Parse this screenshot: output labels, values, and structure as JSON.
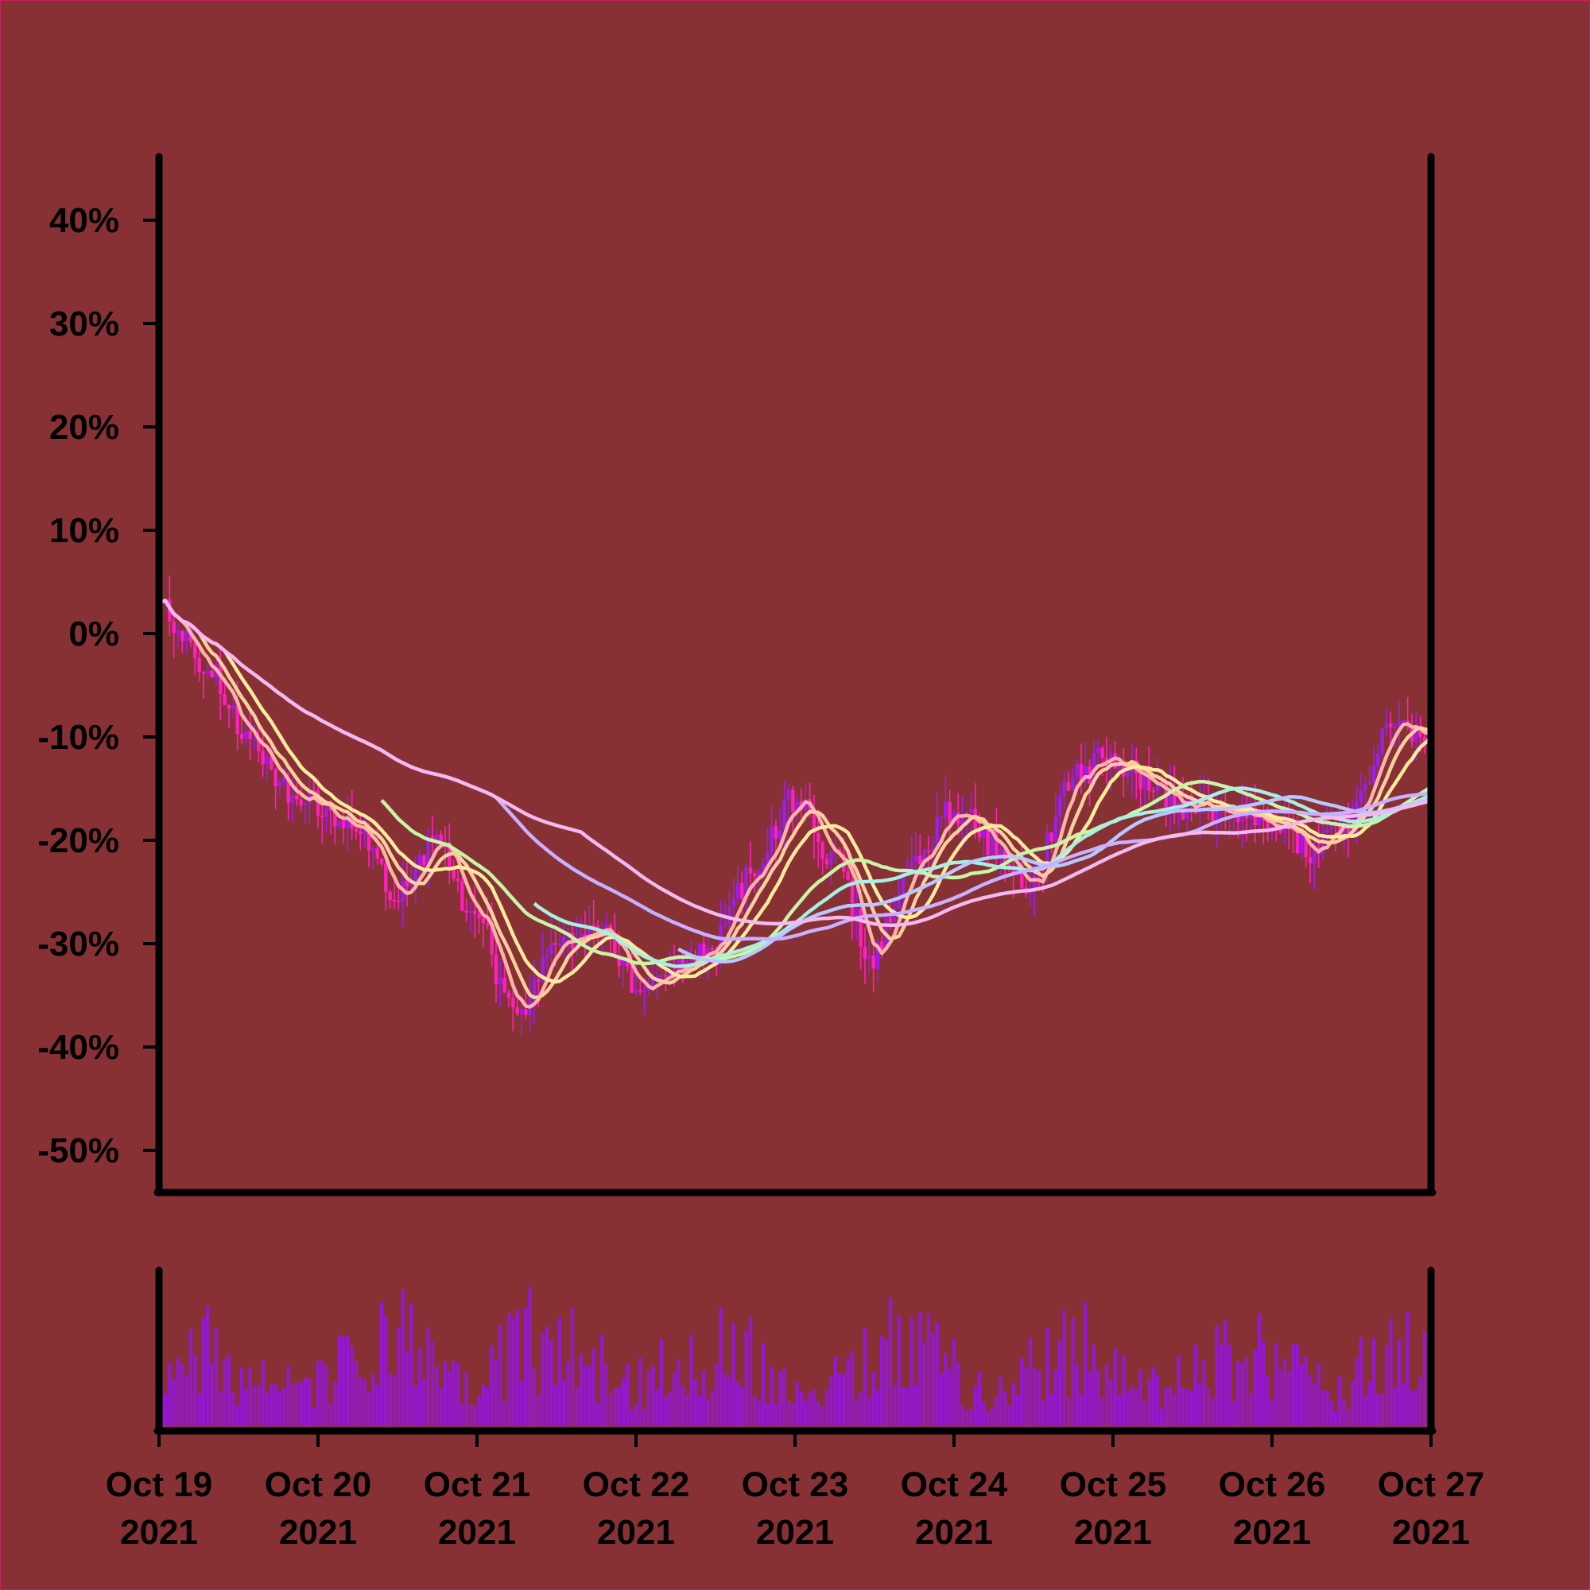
{
  "colors": {
    "background": "#873135",
    "frame": "#000000",
    "candle_up": "#9B1FE8",
    "candle_down": "#FF1FBF",
    "volume": "#9418CC"
  },
  "chart_data": [
    {
      "type": "candlestick",
      "title": "",
      "xlabel": "",
      "ylabel": "",
      "ylim": [
        -50,
        40
      ],
      "y_unit": "%",
      "y_ticks": [
        {
          "value": 40,
          "label": "40%"
        },
        {
          "value": 30,
          "label": "30%"
        },
        {
          "value": 20,
          "label": "20%"
        },
        {
          "value": 10,
          "label": "10%"
        },
        {
          "value": 0,
          "label": "0%"
        },
        {
          "value": -10,
          "label": "-10%"
        },
        {
          "value": -20,
          "label": "-20%"
        },
        {
          "value": -30,
          "label": "-30%"
        },
        {
          "value": -40,
          "label": "-40%"
        },
        {
          "value": -50,
          "label": "-50%"
        }
      ],
      "x_range": [
        "2021-10-19",
        "2021-10-27"
      ],
      "grid": false,
      "legend": "none",
      "price_close_keyframes": [
        {
          "t": "2021-10-19 00:00",
          "v": 2.5
        },
        {
          "t": "2021-10-19 08:00",
          "v": -3
        },
        {
          "t": "2021-10-19 14:00",
          "v": -11
        },
        {
          "t": "2021-10-19 22:00",
          "v": -16
        },
        {
          "t": "2021-10-20 06:00",
          "v": -19
        },
        {
          "t": "2021-10-20 12:00",
          "v": -25
        },
        {
          "t": "2021-10-20 18:00",
          "v": -20
        },
        {
          "t": "2021-10-21 00:00",
          "v": -27
        },
        {
          "t": "2021-10-21 06:00",
          "v": -37
        },
        {
          "t": "2021-10-21 12:00",
          "v": -30
        },
        {
          "t": "2021-10-21 18:00",
          "v": -28
        },
        {
          "t": "2021-10-22 00:00",
          "v": -34
        },
        {
          "t": "2021-10-22 06:00",
          "v": -32
        },
        {
          "t": "2021-10-22 12:00",
          "v": -30
        },
        {
          "t": "2021-10-22 18:00",
          "v": -23
        },
        {
          "t": "2021-10-23 00:00",
          "v": -16
        },
        {
          "t": "2021-10-23 06:00",
          "v": -22
        },
        {
          "t": "2021-10-23 12:00",
          "v": -31
        },
        {
          "t": "2021-10-23 18:00",
          "v": -22
        },
        {
          "t": "2021-10-24 00:00",
          "v": -17
        },
        {
          "t": "2021-10-24 06:00",
          "v": -20
        },
        {
          "t": "2021-10-24 12:00",
          "v": -24
        },
        {
          "t": "2021-10-24 18:00",
          "v": -14
        },
        {
          "t": "2021-10-25 00:00",
          "v": -12
        },
        {
          "t": "2021-10-25 06:00",
          "v": -15
        },
        {
          "t": "2021-10-25 12:00",
          "v": -17
        },
        {
          "t": "2021-10-25 18:00",
          "v": -18
        },
        {
          "t": "2021-10-26 00:00",
          "v": -18
        },
        {
          "t": "2021-10-26 06:00",
          "v": -21
        },
        {
          "t": "2021-10-26 12:00",
          "v": -18
        },
        {
          "t": "2021-10-26 18:00",
          "v": -9
        },
        {
          "t": "2021-10-27 00:00",
          "v": -10
        }
      ],
      "moving_averages": [
        {
          "color": "#FFB3A8",
          "final": -6.5
        },
        {
          "color": "#FFCF9E",
          "final": -8.5
        },
        {
          "color": "#FFEA9E",
          "final": -11
        },
        {
          "color": "#C8F5A8",
          "final": -16
        },
        {
          "color": "#A8F0E0",
          "final": -15.5
        },
        {
          "color": "#B8C8FF",
          "final": -17
        },
        {
          "color": "#C8B0FF",
          "final": -19
        },
        {
          "color": "#F5B8F0",
          "final": -22
        }
      ]
    },
    {
      "type": "bar",
      "title": "",
      "xlabel": "",
      "ylabel": "",
      "x_ticks": [
        {
          "line1": "Oct 19",
          "line2": "2021"
        },
        {
          "line1": "Oct 20",
          "line2": "2021"
        },
        {
          "line1": "Oct 21",
          "line2": "2021"
        },
        {
          "line1": "Oct 22",
          "line2": "2021"
        },
        {
          "line1": "Oct 23",
          "line2": "2021"
        },
        {
          "line1": "Oct 24",
          "line2": "2021"
        },
        {
          "line1": "Oct 25",
          "line2": "2021"
        },
        {
          "line1": "Oct 26",
          "line2": "2021"
        },
        {
          "line1": "Oct 27",
          "line2": "2021"
        }
      ],
      "volume_profile": [
        0.62,
        0.55,
        0.65,
        0.6,
        0.66,
        0.78,
        0.68,
        0.82,
        0.65,
        0.72,
        0.8,
        0.62,
        0.7,
        0.6,
        0.74,
        0.66,
        0.8,
        0.58,
        0.6,
        0.7,
        0.62,
        0.66,
        0.58,
        0.6,
        0.72,
        0.76,
        0.62
      ]
    }
  ]
}
